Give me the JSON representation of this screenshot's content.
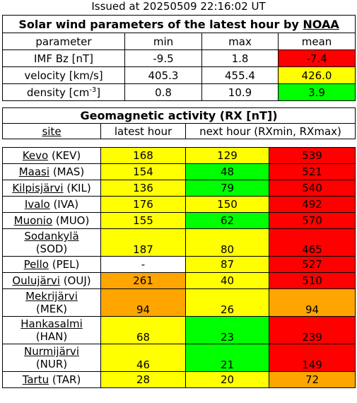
{
  "issued": "Issued at 20250509 22:16:02 UT",
  "solar_wind": {
    "title_prefix": "Solar wind parameters of the latest hour by ",
    "title_link": "NOAA",
    "headers": [
      "parameter",
      "min",
      "max",
      "mean"
    ],
    "rows": [
      {
        "param_html": "IMF Bz [nT]",
        "min": "-9.5",
        "max": "1.8",
        "mean": "-7.4",
        "mean_color": "#ff0000"
      },
      {
        "param_html": "velocity [km/s]",
        "min": "405.3",
        "max": "455.4",
        "mean": "426.0",
        "mean_color": "#ffff00"
      },
      {
        "param_html": "density [cm-3]",
        "min": "0.8",
        "max": "10.9",
        "mean": "3.9",
        "mean_color": "#00ff00"
      }
    ]
  },
  "geomagnetic": {
    "title": "Geomagnetic activity (RX [nT])",
    "headers": [
      "site",
      "latest hour",
      "next hour (RXmin, RXmax)"
    ]
  },
  "stations": [
    {
      "name": "Kevo",
      "code": "(KEV)",
      "two_line": false,
      "latest": "168",
      "latest_c": "y",
      "min": "129",
      "min_c": "y",
      "max": "539",
      "max_c": "r"
    },
    {
      "name": "Maasi",
      "code": "(MAS)",
      "two_line": false,
      "latest": "154",
      "latest_c": "y",
      "min": "48",
      "min_c": "g",
      "max": "521",
      "max_c": "r"
    },
    {
      "name": "Kilpisjärvi",
      "code": "(KIL)",
      "two_line": false,
      "latest": "136",
      "latest_c": "y",
      "min": "79",
      "min_c": "g",
      "max": "540",
      "max_c": "r"
    },
    {
      "name": "Ivalo",
      "code": "(IVA)",
      "two_line": false,
      "latest": "176",
      "latest_c": "y",
      "min": "150",
      "min_c": "y",
      "max": "492",
      "max_c": "r"
    },
    {
      "name": "Muonio",
      "code": "(MUO)",
      "two_line": false,
      "latest": "155",
      "latest_c": "y",
      "min": "62",
      "min_c": "g",
      "max": "570",
      "max_c": "r"
    },
    {
      "name": "Sodankylä",
      "code": "(SOD)",
      "two_line": true,
      "latest": "187",
      "latest_c": "y",
      "min": "80",
      "min_c": "y",
      "max": "465",
      "max_c": "r"
    },
    {
      "name": "Pello",
      "code": "(PEL)",
      "two_line": false,
      "latest": "-",
      "latest_c": "w",
      "min": "87",
      "min_c": "y",
      "max": "527",
      "max_c": "r"
    },
    {
      "name": "Oulujärvi",
      "code": "(OUJ)",
      "two_line": false,
      "latest": "261",
      "latest_c": "o",
      "min": "40",
      "min_c": "y",
      "max": "510",
      "max_c": "r"
    },
    {
      "name": "Mekrijärvi",
      "code": "(MEK)",
      "two_line": true,
      "latest": "94",
      "latest_c": "o",
      "min": "26",
      "min_c": "y",
      "max": "94",
      "max_c": "o"
    },
    {
      "name": "Hankasalmi",
      "code": "(HAN)",
      "two_line": true,
      "latest": "68",
      "latest_c": "y",
      "min": "23",
      "min_c": "g",
      "max": "239",
      "max_c": "r"
    },
    {
      "name": "Nurmijärvi",
      "code": "(NUR)",
      "two_line": true,
      "latest": "46",
      "latest_c": "y",
      "min": "21",
      "min_c": "g",
      "max": "149",
      "max_c": "r"
    },
    {
      "name": "Tartu",
      "code": "(TAR)",
      "two_line": false,
      "latest": "28",
      "latest_c": "y",
      "min": "20",
      "min_c": "y",
      "max": "72",
      "max_c": "o"
    }
  ]
}
